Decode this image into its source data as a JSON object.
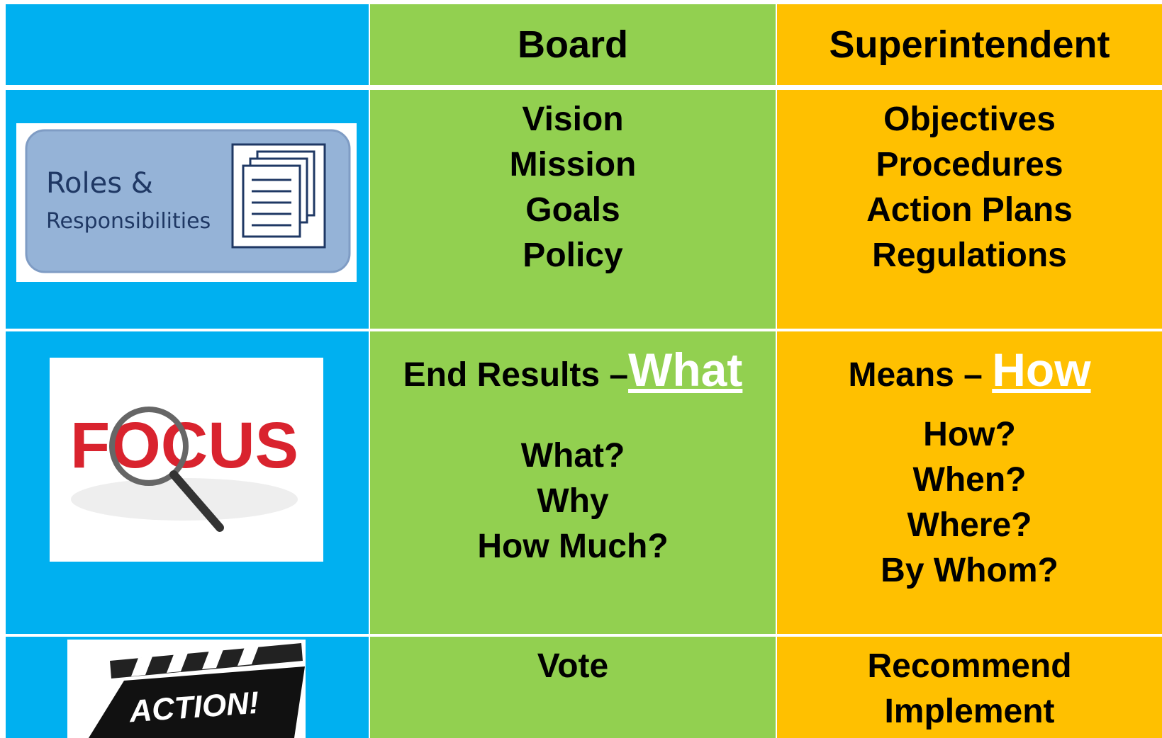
{
  "header": {
    "board": "Board",
    "superintendent": "Superintendent"
  },
  "rows": [
    {
      "image_text": [
        "Roles &",
        "Responsibilities"
      ],
      "board": {
        "items": [
          "Vision",
          "Mission",
          "Goals",
          "Policy"
        ]
      },
      "superintendent": {
        "items": [
          "Objectives",
          "Procedures",
          "Action Plans",
          "Regulations"
        ]
      }
    },
    {
      "image_text": [
        "FOCUS"
      ],
      "board": {
        "heading": "End Results –",
        "emphasis": "What",
        "items": [
          "What?",
          "Why",
          "How Much?"
        ]
      },
      "superintendent": {
        "heading": "Means –",
        "emphasis": "How",
        "items": [
          "How?",
          "When?",
          "Where?",
          "By Whom?"
        ]
      }
    },
    {
      "image_text": [
        "ACTION!"
      ],
      "board": {
        "items": [
          "Vote"
        ]
      },
      "superintendent": {
        "items": [
          "Recommend",
          "Implement"
        ]
      }
    }
  ]
}
